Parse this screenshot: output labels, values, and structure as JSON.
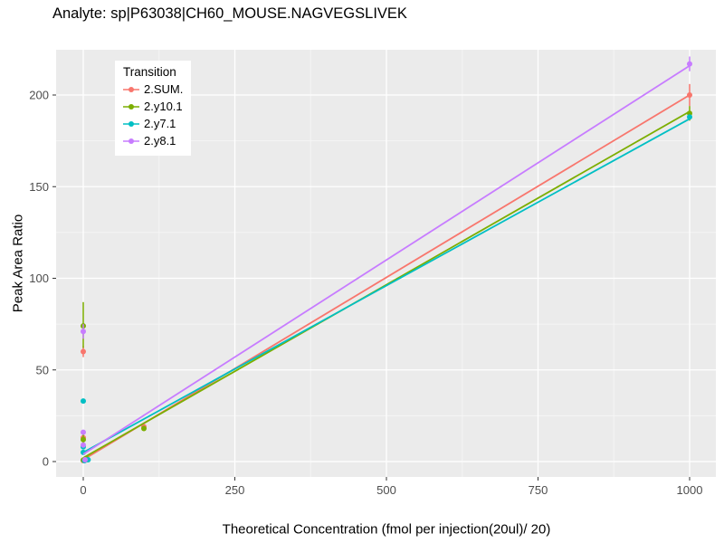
{
  "chart_data": {
    "type": "scatter",
    "title": "Analyte: sp|P63038|CH60_MOUSE.NAGVEGSLIVEK",
    "xlabel": "Theoretical Concentration (fmol per injection(20ul)/ 20)",
    "ylabel": "Peak Area Ratio",
    "xlim": [
      -45,
      1045
    ],
    "ylim": [
      -10,
      225
    ],
    "x_ticks": [
      0,
      250,
      500,
      750,
      1000
    ],
    "y_ticks": [
      0,
      50,
      100,
      150,
      200
    ],
    "grid": "on",
    "panel_bg": "#EBEBEB",
    "grid_major": "#FFFFFF",
    "grid_minor": "#F5F5F5",
    "legend_title": "Transition",
    "legend_position": "top-left-inside",
    "series": [
      {
        "name": "2.SUM.",
        "color": "#F8766D",
        "line": {
          "x": [
            0,
            1000
          ],
          "y": [
            1,
            200
          ]
        },
        "points": [
          {
            "x": 0,
            "y": 0.5
          },
          {
            "x": 5,
            "y": 1
          },
          {
            "x": 0,
            "y": 13
          },
          {
            "x": 0,
            "y": 60,
            "e": [
              57,
              63
            ]
          },
          {
            "x": 100,
            "y": 19
          },
          {
            "x": 1000,
            "y": 200,
            "e": [
              194,
              206
            ]
          }
        ]
      },
      {
        "name": "2.y10.1",
        "color": "#7CAE00",
        "line": {
          "x": [
            0,
            1000
          ],
          "y": [
            2,
            191
          ]
        },
        "points": [
          {
            "x": 0,
            "y": 0.8
          },
          {
            "x": 6,
            "y": 1.5
          },
          {
            "x": 0,
            "y": 12,
            "e": [
              8,
              16
            ]
          },
          {
            "x": 0,
            "y": 74,
            "e": [
              62,
              87
            ]
          },
          {
            "x": 100,
            "y": 18
          },
          {
            "x": 1000,
            "y": 190,
            "e": [
              186,
              194
            ]
          }
        ]
      },
      {
        "name": "2.y7.1",
        "color": "#00BFC4",
        "line": {
          "x": [
            0,
            1000
          ],
          "y": [
            5,
            187
          ]
        },
        "points": [
          {
            "x": 2,
            "y": 0.5
          },
          {
            "x": 8,
            "y": 1
          },
          {
            "x": 0,
            "y": 5
          },
          {
            "x": 0,
            "y": 8
          },
          {
            "x": 0,
            "y": 33
          },
          {
            "x": 1000,
            "y": 188
          }
        ]
      },
      {
        "name": "2.y8.1",
        "color": "#C77CFF",
        "line": {
          "x": [
            0,
            1000
          ],
          "y": [
            4,
            216
          ]
        },
        "points": [
          {
            "x": 3,
            "y": 1
          },
          {
            "x": 0,
            "y": 9
          },
          {
            "x": 0,
            "y": 16
          },
          {
            "x": 0,
            "y": 71,
            "e": [
              67,
              75
            ]
          },
          {
            "x": 1000,
            "y": 217,
            "e": [
              213,
              221
            ]
          }
        ]
      }
    ]
  }
}
